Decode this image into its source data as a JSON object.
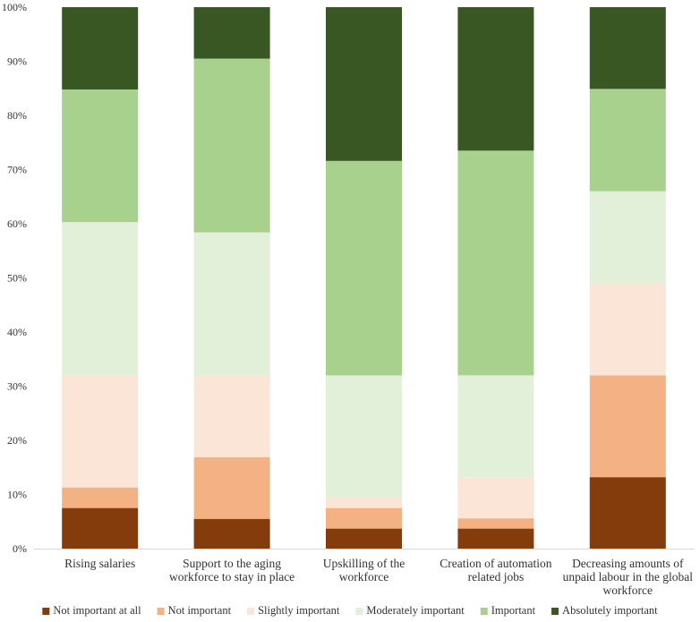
{
  "chart_data": {
    "type": "bar",
    "stacked": true,
    "normalized": true,
    "title": "",
    "xlabel": "",
    "ylabel": "",
    "ylim": [
      0,
      100
    ],
    "y_ticks": [
      "0%",
      "10%",
      "20%",
      "30%",
      "40%",
      "50%",
      "60%",
      "70%",
      "80%",
      "90%",
      "100%"
    ],
    "categories": [
      [
        "Rising salaries"
      ],
      [
        "Support to the aging",
        "workforce to stay in place"
      ],
      [
        "Upskilling of the",
        "workforce"
      ],
      [
        "Creation of automation",
        "related jobs"
      ],
      [
        "Decreasing amounts of",
        "unpaid labour in the global",
        "workforce"
      ]
    ],
    "series": [
      {
        "name": "Not important at all",
        "color": "#843c0c",
        "values": [
          7.5,
          5.5,
          3.7,
          3.7,
          13.2
        ]
      },
      {
        "name": "Not important",
        "color": "#f4b183",
        "values": [
          3.8,
          11.4,
          3.8,
          1.9,
          18.8
        ]
      },
      {
        "name": "Slightly important",
        "color": "#fbe5d6",
        "values": [
          20.7,
          15.1,
          1.9,
          7.6,
          17.0
        ]
      },
      {
        "name": "Moderately important",
        "color": "#e2f0d9",
        "values": [
          28.3,
          26.4,
          22.6,
          18.8,
          17.0
        ]
      },
      {
        "name": "Important",
        "color": "#a9d18e",
        "values": [
          24.5,
          32.1,
          39.6,
          41.5,
          18.9
        ]
      },
      {
        "name": "Absolutely important",
        "color": "#385723",
        "values": [
          15.2,
          9.5,
          28.4,
          26.5,
          15.1
        ]
      }
    ],
    "legend_position": "bottom",
    "grid": false
  }
}
